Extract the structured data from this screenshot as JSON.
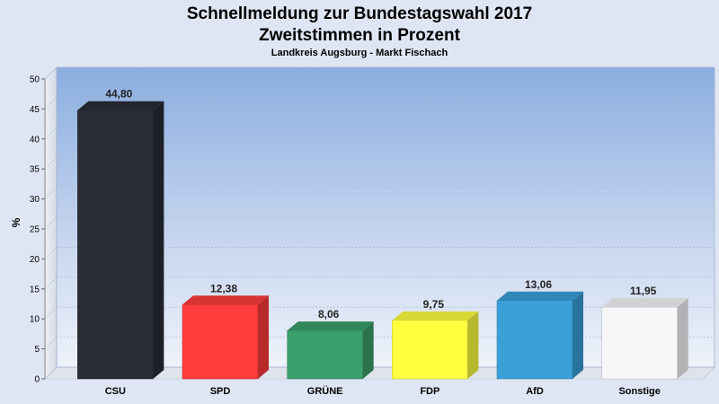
{
  "header": {
    "title_line1": "Schnellmeldung zur Bundestagswahl 2017",
    "title_line2": "Zweitstimmen in Prozent",
    "subtitle": "Landkreis Augsburg - Markt Fischach"
  },
  "chart_data": {
    "type": "bar",
    "title": "Schnellmeldung zur Bundestagswahl 2017 Zweitstimmen in Prozent",
    "subtitle": "Landkreis Augsburg - Markt Fischach",
    "ylabel": "%",
    "ylim": [
      0,
      50
    ],
    "yticks": [
      0,
      5,
      10,
      15,
      20,
      25,
      30,
      35,
      40,
      45,
      50
    ],
    "grid": true,
    "categories": [
      "CSU",
      "SPD",
      "GRÜNE",
      "FDP",
      "AfD",
      "Sonstige"
    ],
    "values": [
      44.8,
      12.38,
      8.06,
      9.75,
      13.06,
      11.95
    ],
    "value_labels": [
      "44,80",
      "12,38",
      "8,06",
      "9,75",
      "13,06",
      "11,95"
    ],
    "colors": [
      "#2a2d36",
      "#ff3b3b",
      "#3aa06b",
      "#ffff40",
      "#3aa0d8",
      "#f7f7fa"
    ]
  }
}
